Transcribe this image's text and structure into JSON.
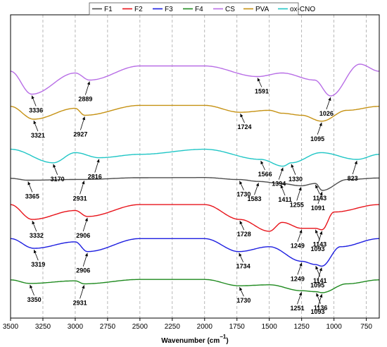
{
  "chart_data": {
    "type": "line",
    "title": "",
    "xlabel": "Wavenumber (cm",
    "xlabel_superscript": "−1",
    "xlabel_close": ")",
    "ylabel": "",
    "xlim": [
      3500,
      650
    ],
    "x_reversed": true,
    "x_ticks": [
      3500,
      3250,
      3000,
      2750,
      2500,
      2250,
      2000,
      1750,
      1500,
      1250,
      1000,
      750
    ],
    "grid": "vertical dashed",
    "legend_position": "top",
    "series": [
      {
        "name": "F1",
        "color": "#4d4d4d",
        "key_points": [
          [
            3500,
            0.22
          ],
          [
            3365,
            0.34
          ],
          [
            2931,
            0.29
          ],
          [
            2500,
            0.18
          ],
          [
            2000,
            0.17
          ],
          [
            1730,
            0.3
          ],
          [
            1583,
            0.42
          ],
          [
            1411,
            0.55
          ],
          [
            1255,
            0.7
          ],
          [
            1143,
            0.55
          ],
          [
            1091,
            1.0
          ],
          [
            900,
            0.3
          ],
          [
            650,
            0.2
          ]
        ]
      },
      {
        "name": "F2",
        "color": "#e8141b",
        "key_points": [
          [
            3500,
            0.05
          ],
          [
            3332,
            0.55
          ],
          [
            3000,
            0.25
          ],
          [
            2906,
            0.45
          ],
          [
            2500,
            0.05
          ],
          [
            2000,
            0.05
          ],
          [
            1728,
            0.55
          ],
          [
            1500,
            0.95
          ],
          [
            1400,
            0.65
          ],
          [
            1249,
            0.85
          ],
          [
            1143,
            0.85
          ],
          [
            1093,
            0.9
          ],
          [
            1000,
            0.3
          ],
          [
            650,
            0.05
          ]
        ]
      },
      {
        "name": "F3",
        "color": "#1d1ee0",
        "key_points": [
          [
            3500,
            0.05
          ],
          [
            3319,
            0.35
          ],
          [
            3000,
            0.15
          ],
          [
            2906,
            0.45
          ],
          [
            2500,
            0.05
          ],
          [
            2000,
            0.05
          ],
          [
            1734,
            0.45
          ],
          [
            1500,
            0.3
          ],
          [
            1249,
            0.75
          ],
          [
            1141,
            0.85
          ],
          [
            1095,
            0.9
          ],
          [
            950,
            0.3
          ],
          [
            650,
            0.05
          ]
        ]
      },
      {
        "name": "F4",
        "color": "#1f8a1f",
        "key_points": [
          [
            3500,
            0.1
          ],
          [
            3350,
            0.28
          ],
          [
            3000,
            0.15
          ],
          [
            2931,
            0.3
          ],
          [
            2500,
            0.08
          ],
          [
            2000,
            0.08
          ],
          [
            1730,
            0.4
          ],
          [
            1500,
            0.35
          ],
          [
            1251,
            0.65
          ],
          [
            1136,
            0.7
          ],
          [
            1093,
            0.75
          ],
          [
            900,
            0.3
          ],
          [
            650,
            0.1
          ]
        ]
      },
      {
        "name": "CS",
        "color": "#b86ee6",
        "key_points": [
          [
            3500,
            0.3
          ],
          [
            3336,
            0.95
          ],
          [
            3000,
            0.35
          ],
          [
            2889,
            0.55
          ],
          [
            2500,
            0.15
          ],
          [
            2000,
            0.15
          ],
          [
            1591,
            0.45
          ],
          [
            1400,
            0.35
          ],
          [
            1150,
            0.55
          ],
          [
            1026,
            1.0
          ],
          [
            800,
            0.1
          ],
          [
            650,
            0.3
          ]
        ]
      },
      {
        "name": "PVA",
        "color": "#c69214",
        "key_points": [
          [
            3500,
            0.1
          ],
          [
            3321,
            0.75
          ],
          [
            3000,
            0.2
          ],
          [
            2927,
            0.55
          ],
          [
            2500,
            0.05
          ],
          [
            2000,
            0.05
          ],
          [
            1724,
            0.4
          ],
          [
            1500,
            0.3
          ],
          [
            1400,
            0.45
          ],
          [
            1250,
            0.55
          ],
          [
            1095,
            0.85
          ],
          [
            900,
            0.3
          ],
          [
            650,
            0.1
          ]
        ]
      },
      {
        "name": "ox-CNO",
        "color": "#21c6c6",
        "key_points": [
          [
            3500,
            0.45
          ],
          [
            3170,
            0.85
          ],
          [
            3000,
            0.55
          ],
          [
            2816,
            0.7
          ],
          [
            2500,
            0.6
          ],
          [
            2000,
            0.45
          ],
          [
            1566,
            0.75
          ],
          [
            1394,
            0.95
          ],
          [
            1330,
            0.85
          ],
          [
            1100,
            0.55
          ],
          [
            823,
            0.75
          ],
          [
            650,
            0.6
          ]
        ]
      }
    ],
    "annotations": [
      {
        "text": "3336",
        "series": "CS",
        "x": 3336
      },
      {
        "text": "2889",
        "series": "CS",
        "x": 2889
      },
      {
        "text": "1591",
        "series": "CS",
        "x": 1591
      },
      {
        "text": "1026",
        "series": "CS",
        "x": 1026
      },
      {
        "text": "3321",
        "series": "PVA",
        "x": 3321
      },
      {
        "text": "2927",
        "series": "PVA",
        "x": 2927
      },
      {
        "text": "1724",
        "series": "PVA",
        "x": 1724
      },
      {
        "text": "1095",
        "series": "PVA",
        "x": 1095
      },
      {
        "text": "3170",
        "series": "ox-CNO",
        "x": 3170
      },
      {
        "text": "2816",
        "series": "ox-CNO",
        "x": 2816
      },
      {
        "text": "1566",
        "series": "ox-CNO",
        "x": 1566
      },
      {
        "text": "1394",
        "series": "ox-CNO",
        "x": 1394
      },
      {
        "text": "1330",
        "series": "ox-CNO",
        "x": 1330
      },
      {
        "text": "823",
        "series": "ox-CNO",
        "x": 823
      },
      {
        "text": "3365",
        "series": "F1",
        "x": 3365
      },
      {
        "text": "2931",
        "series": "F1",
        "x": 2931
      },
      {
        "text": "1730",
        "series": "F1",
        "x": 1730
      },
      {
        "text": "1583",
        "series": "F1",
        "x": 1583
      },
      {
        "text": "1411",
        "series": "F1",
        "x": 1411
      },
      {
        "text": "1255",
        "series": "F1",
        "x": 1255
      },
      {
        "text": "1143",
        "series": "F1",
        "x": 1143
      },
      {
        "text": "1091",
        "series": "F1",
        "x": 1091
      },
      {
        "text": "3332",
        "series": "F2",
        "x": 3332
      },
      {
        "text": "2906",
        "series": "F2",
        "x": 2906
      },
      {
        "text": "1728",
        "series": "F2",
        "x": 1728
      },
      {
        "text": "1249",
        "series": "F2",
        "x": 1249
      },
      {
        "text": "1143",
        "series": "F2",
        "x": 1143
      },
      {
        "text": "1093",
        "series": "F2",
        "x": 1093
      },
      {
        "text": "3319",
        "series": "F3",
        "x": 3319
      },
      {
        "text": "2906",
        "series": "F3",
        "x": 2906
      },
      {
        "text": "1734",
        "series": "F3",
        "x": 1734
      },
      {
        "text": "1249",
        "series": "F3",
        "x": 1249
      },
      {
        "text": "1141",
        "series": "F3",
        "x": 1141
      },
      {
        "text": "1095",
        "series": "F3",
        "x": 1095
      },
      {
        "text": "3350",
        "series": "F4",
        "x": 3350
      },
      {
        "text": "2931",
        "series": "F4",
        "x": 2931
      },
      {
        "text": "1730",
        "series": "F4",
        "x": 1730
      },
      {
        "text": "1251",
        "series": "F4",
        "x": 1251
      },
      {
        "text": "1136",
        "series": "F4",
        "x": 1136
      },
      {
        "text": "1093",
        "series": "F4",
        "x": 1093
      }
    ]
  }
}
